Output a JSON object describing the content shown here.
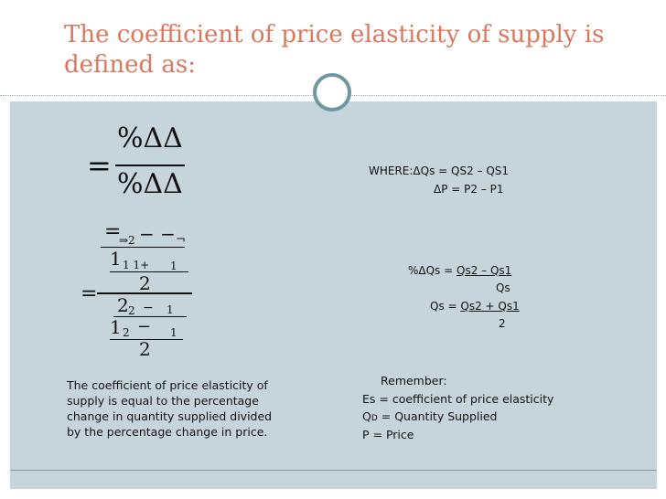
{
  "title": "The coefficient of price elasticity of supply is defined as:",
  "formula1": {
    "numerator": "%ΔΔ",
    "equals": "=",
    "denominator": "%ΔΔ"
  },
  "formula2": {
    "top": "=",
    "top_sub": "⇒2",
    "top_dashes": "− −",
    "top_corner": "¬",
    "row1_main": "1",
    "row1_sub": "1 1+",
    "row1_right": "1",
    "row2": "2",
    "equals": "=",
    "row3_main": "2",
    "row3_sub": "2",
    "row3_minus": "−",
    "row3_right": "1",
    "row4_main": "1",
    "row4_sub": "2",
    "row4_minus": "−",
    "row4_right": "1",
    "row5": "2"
  },
  "where": {
    "line1": "WHERE:ΔQs = QS2 – QS1",
    "line2": "ΔP = P2 – P1"
  },
  "pct": {
    "label": "%ΔQs = ",
    "numer": "Qs2 – Qs1",
    "denom": "Qs",
    "qs_label": "Qs = ",
    "qs_numer": "Qs2 + Qs1",
    "qs_denom": "2"
  },
  "description": "The coefficient of price elasticity of supply is equal to the percentage change in quantity supplied divided by the percentage change in price.",
  "remember": {
    "heading": "Remember:",
    "es": "Es = coefficient of price elasticity",
    "qd_q": "Q",
    "qd_sub": "D",
    "qd_rest": " = Quantity Supplied",
    "p": "P = Price"
  },
  "colors": {
    "title": "#d9785f",
    "panel": "#c6d4db",
    "bullet_ring": "#6f97a0"
  }
}
